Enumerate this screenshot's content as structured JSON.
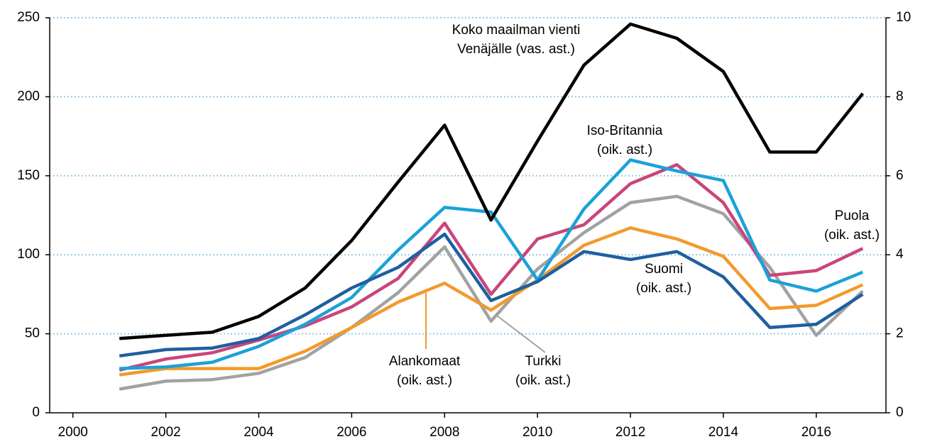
{
  "chart_data": {
    "type": "line",
    "x": [
      2001,
      2002,
      2003,
      2004,
      2005,
      2006,
      2007,
      2008,
      2009,
      2010,
      2011,
      2012,
      2013,
      2014,
      2015,
      2016,
      2017
    ],
    "xlim": [
      1999.5,
      2017.5
    ],
    "xticks": [
      2000,
      2002,
      2004,
      2006,
      2008,
      2010,
      2012,
      2014,
      2016
    ],
    "ylim": [
      0,
      250
    ],
    "yticks": [
      0,
      50,
      100,
      150,
      200,
      250
    ],
    "y2lim": [
      0,
      10
    ],
    "y2ticks": [
      0,
      2,
      4,
      6,
      8,
      10
    ],
    "grid": true,
    "series": [
      {
        "label_lines": [
          "Koko maailman vienti",
          "Venäjälle (vas. ast.)"
        ],
        "color": "#000000",
        "values": [
          47,
          49,
          51,
          61,
          79,
          109,
          146,
          182,
          122,
          172,
          220,
          246,
          237,
          216,
          165,
          165,
          202
        ]
      },
      {
        "label_lines": [
          "Suomi",
          "(oik. ast.)"
        ],
        "color": "#1f5fa0",
        "axis": "y2",
        "values": [
          1.44,
          1.6,
          1.64,
          1.88,
          2.48,
          3.16,
          3.68,
          4.52,
          2.84,
          3.32,
          4.08,
          3.88,
          4.08,
          3.44,
          2.16,
          2.24,
          3.0
        ]
      },
      {
        "label_lines": [
          "Iso-Britannia",
          "(oik. ast.)"
        ],
        "color": "#1ba1d9",
        "axis": "y2",
        "values": [
          1.12,
          1.16,
          1.28,
          1.68,
          2.24,
          2.92,
          4.12,
          5.2,
          5.08,
          3.36,
          5.16,
          6.4,
          6.12,
          5.88,
          3.36,
          3.08,
          3.56
        ]
      },
      {
        "label_lines": [
          "Puola",
          "(oik. ast.)"
        ],
        "color": "#c9457b",
        "axis": "y2",
        "values": [
          1.08,
          1.36,
          1.52,
          1.84,
          2.2,
          2.68,
          3.4,
          4.8,
          3.0,
          4.4,
          4.76,
          5.8,
          6.28,
          5.32,
          3.48,
          3.6,
          4.16
        ]
      },
      {
        "label_lines": [
          "Turkki",
          "(oik. ast.)"
        ],
        "color": "#a2a2a2",
        "axis": "y2",
        "values": [
          0.6,
          0.8,
          0.84,
          1.0,
          1.4,
          2.16,
          3.04,
          4.2,
          2.32,
          3.64,
          4.56,
          5.32,
          5.48,
          5.04,
          3.68,
          1.96,
          3.08
        ]
      },
      {
        "label_lines": [
          "Alankomaat",
          "(oik. ast.)"
        ],
        "color": "#f39a2b",
        "axis": "y2",
        "values": [
          0.96,
          1.12,
          1.12,
          1.12,
          1.56,
          2.16,
          2.8,
          3.28,
          2.6,
          3.36,
          4.24,
          4.68,
          4.4,
          3.96,
          2.64,
          2.72,
          3.24
        ]
      }
    ]
  }
}
